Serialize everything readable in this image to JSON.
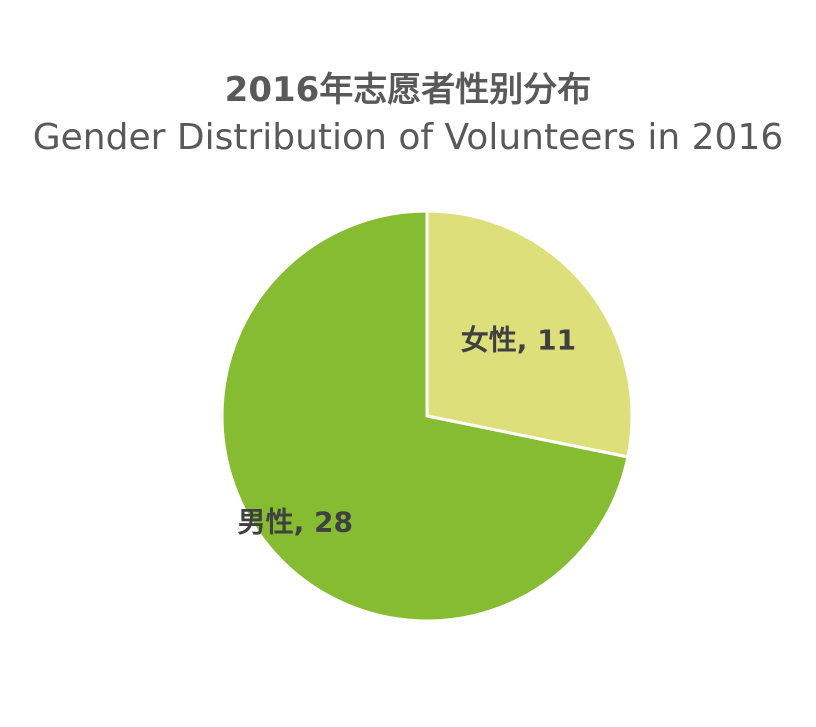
{
  "chart_data": {
    "type": "pie",
    "title": "2016年志愿者性别分布",
    "subtitle": "Gender Distribution of Volunteers in 2016",
    "slices": [
      {
        "label": "女性",
        "value": 11,
        "data_label": "女性, 11",
        "color": "#DDE07A"
      },
      {
        "label": "男性",
        "value": 28,
        "data_label": "男性, 28",
        "color": "#85BC32"
      }
    ],
    "start_angle_deg": 0,
    "direction": "clockwise",
    "edge_color": "#ffffff"
  }
}
